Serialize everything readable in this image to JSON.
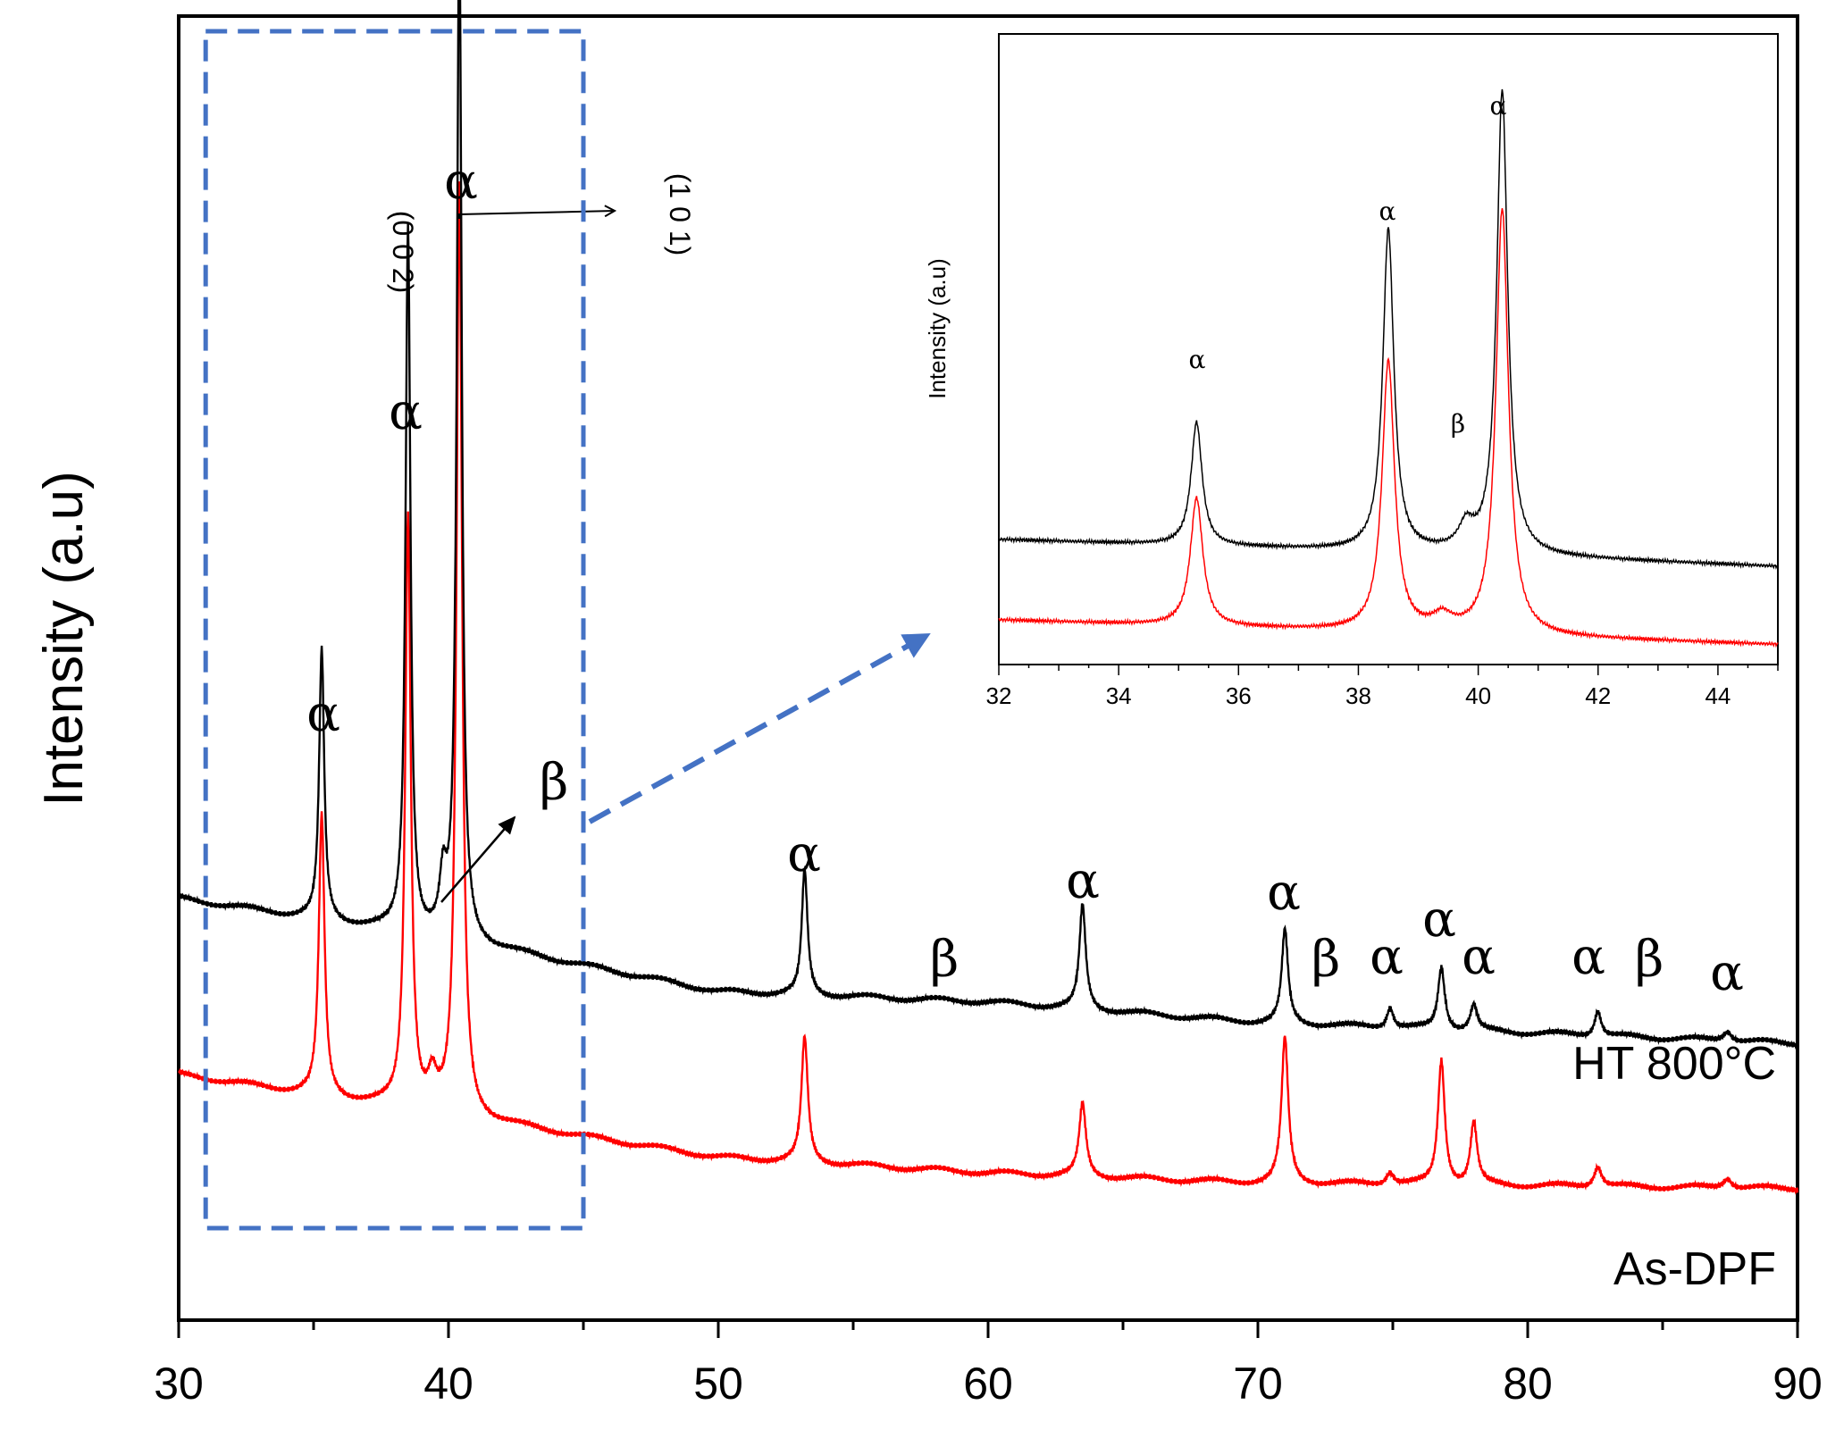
{
  "chart_data": {
    "type": "line",
    "title": "",
    "xlabel": "",
    "ylabel": "Intensity (a.u)",
    "xlim": [
      30,
      90
    ],
    "x_ticks": [
      30,
      40,
      50,
      60,
      70,
      80,
      90
    ],
    "grid": false,
    "series": [
      {
        "name": "HT 800°C",
        "color": "#000000",
        "baseline": [
          [
            30,
            0.34
          ],
          [
            40,
            0.3
          ],
          [
            50,
            0.25
          ],
          [
            60,
            0.24
          ],
          [
            70,
            0.22
          ],
          [
            90,
            0.2
          ]
        ],
        "peaks": [
          {
            "x": 35.3,
            "height": 0.26,
            "width": 0.22
          },
          {
            "x": 38.5,
            "height": 0.68,
            "width": 0.22
          },
          {
            "x": 39.8,
            "height": 0.05,
            "width": 0.3
          },
          {
            "x": 40.4,
            "height": 0.98,
            "width": 0.22
          },
          {
            "x": 53.2,
            "height": 0.12,
            "width": 0.25
          },
          {
            "x": 63.5,
            "height": 0.1,
            "width": 0.28
          },
          {
            "x": 71.0,
            "height": 0.09,
            "width": 0.28
          },
          {
            "x": 74.9,
            "height": 0.02,
            "width": 0.3
          },
          {
            "x": 76.8,
            "height": 0.06,
            "width": 0.3
          },
          {
            "x": 78.0,
            "height": 0.025,
            "width": 0.3
          },
          {
            "x": 82.6,
            "height": 0.025,
            "width": 0.3
          },
          {
            "x": 87.4,
            "height": 0.01,
            "width": 0.4
          }
        ]
      },
      {
        "name": "As-DPF",
        "color": "#ff0000",
        "baseline": [
          [
            30,
            0.17
          ],
          [
            40,
            0.13
          ],
          [
            50,
            0.09
          ],
          [
            60,
            0.075
          ],
          [
            70,
            0.065
          ],
          [
            90,
            0.06
          ]
        ],
        "peaks": [
          {
            "x": 35.3,
            "height": 0.27,
            "width": 0.25
          },
          {
            "x": 38.5,
            "height": 0.57,
            "width": 0.25
          },
          {
            "x": 39.4,
            "height": 0.03,
            "width": 0.4
          },
          {
            "x": 40.4,
            "height": 0.9,
            "width": 0.25
          },
          {
            "x": 53.2,
            "height": 0.12,
            "width": 0.28
          },
          {
            "x": 63.5,
            "height": 0.07,
            "width": 0.3
          },
          {
            "x": 71.0,
            "height": 0.14,
            "width": 0.3
          },
          {
            "x": 74.9,
            "height": 0.012,
            "width": 0.35
          },
          {
            "x": 76.8,
            "height": 0.12,
            "width": 0.3
          },
          {
            "x": 78.0,
            "height": 0.06,
            "width": 0.3
          },
          {
            "x": 82.6,
            "height": 0.02,
            "width": 0.35
          },
          {
            "x": 87.4,
            "height": 0.01,
            "width": 0.4
          }
        ]
      }
    ],
    "annotations": [
      {
        "text": "α",
        "x": 35.3
      },
      {
        "text": "α",
        "x": 38.5
      },
      {
        "text": "(0 0 2)",
        "x": 38.5
      },
      {
        "text": "α",
        "x": 40.4
      },
      {
        "text": "(1 0 1)",
        "x": 47.2
      },
      {
        "text": "β",
        "x": 43.8
      },
      {
        "text": "α",
        "x": 53.2
      },
      {
        "text": "β",
        "x": 58.2
      },
      {
        "text": "α",
        "x": 63.5
      },
      {
        "text": "α",
        "x": 71.0
      },
      {
        "text": "β",
        "x": 72.6
      },
      {
        "text": "α",
        "x": 74.9
      },
      {
        "text": "α",
        "x": 76.8
      },
      {
        "text": "α",
        "x": 78.0
      },
      {
        "text": "α",
        "x": 82.6
      },
      {
        "text": "β",
        "x": 84.8
      },
      {
        "text": "α",
        "x": 87.4
      }
    ],
    "inset": {
      "type": "line",
      "xlim": [
        32,
        45
      ],
      "x_ticks": [
        32,
        34,
        36,
        38,
        40,
        42,
        44
      ],
      "ylabel": "Intensity (a.u)",
      "zoom_range": [
        31,
        45
      ],
      "annotations": [
        {
          "text": "α",
          "x": 35.3
        },
        {
          "text": "α",
          "x": 38.5
        },
        {
          "text": "β",
          "x": 39.8
        },
        {
          "text": "α",
          "x": 40.4
        }
      ]
    }
  }
}
